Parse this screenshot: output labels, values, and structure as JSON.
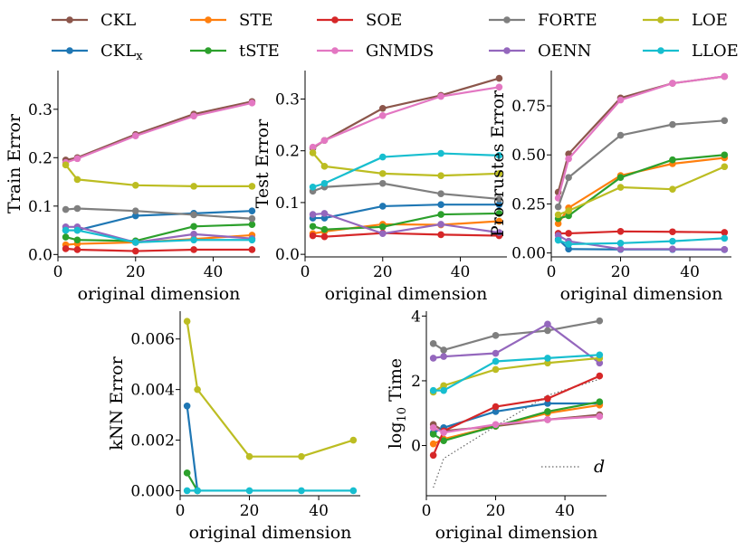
{
  "legend": [
    {
      "name": "CKL",
      "color": "#8c564b"
    },
    {
      "name": "STE",
      "color": "#ff7f0e"
    },
    {
      "name": "SOE",
      "color": "#d62728"
    },
    {
      "name": "FORTE",
      "color": "#7f7f7f"
    },
    {
      "name": "LOE",
      "color": "#bcbd22"
    },
    {
      "name": "CKL_x",
      "color": "#1f77b4"
    },
    {
      "name": "tSTE",
      "color": "#2ca02c"
    },
    {
      "name": "GNMDS",
      "color": "#e377c2"
    },
    {
      "name": "OENN",
      "color": "#9467bd"
    },
    {
      "name": "LLOE",
      "color": "#17becf"
    }
  ],
  "chart_data": [
    {
      "type": "line",
      "xlabel": "original dimension",
      "ylabel": "Train Error",
      "xticks": [
        "0",
        "20",
        "40"
      ],
      "yticks": [
        "0.0",
        "0.1",
        "0.2",
        "0.3"
      ],
      "xlim": [
        0,
        52
      ],
      "ylim": [
        -0.005,
        0.38
      ],
      "series": [
        {
          "name": "CKL",
          "color": "#8c564b",
          "x": [
            2,
            5,
            20,
            35,
            50
          ],
          "y": [
            0.195,
            0.2,
            0.248,
            0.29,
            0.316
          ]
        },
        {
          "name": "CKL_x",
          "color": "#1f77b4",
          "x": [
            2,
            5,
            20,
            35,
            50
          ],
          "y": [
            0.05,
            0.05,
            0.08,
            0.085,
            0.09
          ]
        },
        {
          "name": "STE",
          "color": "#ff7f0e",
          "x": [
            2,
            5,
            20,
            35,
            50
          ],
          "y": [
            0.02,
            0.022,
            0.025,
            0.032,
            0.04
          ]
        },
        {
          "name": "tSTE",
          "color": "#2ca02c",
          "x": [
            2,
            5,
            20,
            35,
            50
          ],
          "y": [
            0.036,
            0.03,
            0.028,
            0.058,
            0.062
          ]
        },
        {
          "name": "SOE",
          "color": "#d62728",
          "x": [
            2,
            5,
            20,
            35,
            50
          ],
          "y": [
            0.012,
            0.01,
            0.007,
            0.01,
            0.01
          ]
        },
        {
          "name": "GNMDS",
          "color": "#e377c2",
          "x": [
            2,
            5,
            20,
            35,
            50
          ],
          "y": [
            0.19,
            0.198,
            0.245,
            0.286,
            0.313
          ]
        },
        {
          "name": "FORTE",
          "color": "#7f7f7f",
          "x": [
            2,
            5,
            20,
            35,
            50
          ],
          "y": [
            0.093,
            0.095,
            0.09,
            0.082,
            0.074
          ]
        },
        {
          "name": "OENN",
          "color": "#9467bd",
          "x": [
            2,
            5,
            20,
            35,
            50
          ],
          "y": [
            0.057,
            0.057,
            0.025,
            0.042,
            0.033
          ]
        },
        {
          "name": "LOE",
          "color": "#bcbd22",
          "x": [
            2,
            5,
            20,
            35,
            50
          ],
          "y": [
            0.185,
            0.155,
            0.143,
            0.141,
            0.141
          ]
        },
        {
          "name": "LLOE",
          "color": "#17becf",
          "x": [
            2,
            5,
            20,
            35,
            50
          ],
          "y": [
            0.05,
            0.05,
            0.025,
            0.03,
            0.03
          ]
        }
      ]
    },
    {
      "type": "line",
      "xlabel": "original dimension",
      "ylabel": "Test Error",
      "xticks": [
        "0",
        "20",
        "40"
      ],
      "yticks": [
        "0.0",
        "0.1",
        "0.2",
        "0.3"
      ],
      "xlim": [
        0,
        52
      ],
      "ylim": [
        -0.005,
        0.355
      ],
      "series": [
        {
          "name": "CKL",
          "color": "#8c564b",
          "x": [
            2,
            5,
            20,
            35,
            50
          ],
          "y": [
            0.205,
            0.22,
            0.282,
            0.307,
            0.34
          ]
        },
        {
          "name": "CKL_x",
          "color": "#1f77b4",
          "x": [
            2,
            5,
            20,
            35,
            50
          ],
          "y": [
            0.07,
            0.07,
            0.093,
            0.096,
            0.096
          ]
        },
        {
          "name": "STE",
          "color": "#ff7f0e",
          "x": [
            2,
            5,
            20,
            35,
            50
          ],
          "y": [
            0.04,
            0.044,
            0.058,
            0.057,
            0.064
          ]
        },
        {
          "name": "tSTE",
          "color": "#2ca02c",
          "x": [
            2,
            5,
            20,
            35,
            50
          ],
          "y": [
            0.054,
            0.048,
            0.053,
            0.077,
            0.079
          ]
        },
        {
          "name": "SOE",
          "color": "#d62728",
          "x": [
            2,
            5,
            20,
            35,
            50
          ],
          "y": [
            0.036,
            0.034,
            0.041,
            0.038,
            0.036
          ]
        },
        {
          "name": "GNMDS",
          "color": "#e377c2",
          "x": [
            2,
            5,
            20,
            35,
            50
          ],
          "y": [
            0.207,
            0.22,
            0.268,
            0.305,
            0.323
          ]
        },
        {
          "name": "FORTE",
          "color": "#7f7f7f",
          "x": [
            2,
            5,
            20,
            35,
            50
          ],
          "y": [
            0.122,
            0.13,
            0.137,
            0.117,
            0.107
          ]
        },
        {
          "name": "OENN",
          "color": "#9467bd",
          "x": [
            2,
            5,
            20,
            35,
            50
          ],
          "y": [
            0.077,
            0.079,
            0.04,
            0.058,
            0.042
          ]
        },
        {
          "name": "LOE",
          "color": "#bcbd22",
          "x": [
            2,
            5,
            20,
            35,
            50
          ],
          "y": [
            0.196,
            0.17,
            0.156,
            0.152,
            0.156
          ]
        },
        {
          "name": "LLOE",
          "color": "#17becf",
          "x": [
            2,
            5,
            20,
            35,
            50
          ],
          "y": [
            0.13,
            0.137,
            0.188,
            0.195,
            0.191
          ]
        }
      ]
    },
    {
      "type": "line",
      "xlabel": "original dimension",
      "ylabel": "Procrustes Error",
      "xticks": [
        "0",
        "20",
        "40"
      ],
      "yticks": [
        "0.00",
        "0.25",
        "0.50",
        "0.75"
      ],
      "xlim": [
        0,
        52
      ],
      "ylim": [
        -0.02,
        0.93
      ],
      "series": [
        {
          "name": "CKL",
          "color": "#8c564b",
          "x": [
            2,
            5,
            20,
            35,
            50
          ],
          "y": [
            0.31,
            0.505,
            0.79,
            0.865,
            0.9
          ]
        },
        {
          "name": "CKL_x",
          "color": "#1f77b4",
          "x": [
            2,
            5,
            20,
            35,
            50
          ],
          "y": [
            0.07,
            0.02,
            0.018,
            0.018,
            0.017
          ]
        },
        {
          "name": "STE",
          "color": "#ff7f0e",
          "x": [
            2,
            5,
            20,
            35,
            50
          ],
          "y": [
            0.15,
            0.23,
            0.395,
            0.455,
            0.485
          ]
        },
        {
          "name": "tSTE",
          "color": "#2ca02c",
          "x": [
            2,
            5,
            20,
            35,
            50
          ],
          "y": [
            0.175,
            0.19,
            0.385,
            0.475,
            0.5
          ]
        },
        {
          "name": "SOE",
          "color": "#d62728",
          "x": [
            2,
            5,
            20,
            35,
            50
          ],
          "y": [
            0.1,
            0.1,
            0.11,
            0.108,
            0.105
          ]
        },
        {
          "name": "GNMDS",
          "color": "#e377c2",
          "x": [
            2,
            5,
            20,
            35,
            50
          ],
          "y": [
            0.28,
            0.48,
            0.78,
            0.865,
            0.9
          ]
        },
        {
          "name": "FORTE",
          "color": "#7f7f7f",
          "x": [
            2,
            5,
            20,
            35,
            50
          ],
          "y": [
            0.235,
            0.385,
            0.6,
            0.655,
            0.675
          ]
        },
        {
          "name": "OENN",
          "color": "#9467bd",
          "x": [
            2,
            5,
            20,
            35,
            50
          ],
          "y": [
            0.09,
            0.06,
            0.02,
            0.02,
            0.018
          ]
        },
        {
          "name": "LOE",
          "color": "#bcbd22",
          "x": [
            2,
            5,
            20,
            35,
            50
          ],
          "y": [
            0.195,
            0.215,
            0.335,
            0.325,
            0.44
          ]
        },
        {
          "name": "LLOE",
          "color": "#17becf",
          "x": [
            2,
            5,
            20,
            35,
            50
          ],
          "y": [
            0.065,
            0.045,
            0.05,
            0.06,
            0.075
          ]
        }
      ]
    },
    {
      "type": "line",
      "xlabel": "original dimension",
      "ylabel": "kNN Error",
      "xticks": [
        "0",
        "20",
        "40"
      ],
      "yticks": [
        "0.000",
        "0.002",
        "0.004",
        "0.006"
      ],
      "xlim": [
        0,
        52
      ],
      "ylim": [
        -0.0002,
        0.0071
      ],
      "series": [
        {
          "name": "CKL_x",
          "color": "#1f77b4",
          "x": [
            2,
            5
          ],
          "y": [
            0.00335,
            0.0
          ]
        },
        {
          "name": "tSTE",
          "color": "#2ca02c",
          "x": [
            2,
            5
          ],
          "y": [
            0.0007,
            0.0
          ]
        },
        {
          "name": "LOE",
          "color": "#bcbd22",
          "x": [
            2,
            5,
            20,
            35,
            50
          ],
          "y": [
            0.0067,
            0.004,
            0.00135,
            0.00135,
            0.002
          ]
        },
        {
          "name": "LLOE",
          "color": "#17becf",
          "x": [
            2,
            5,
            20,
            35,
            50
          ],
          "y": [
            0.0,
            0.0,
            0.0,
            0.0,
            0.0
          ]
        }
      ]
    },
    {
      "type": "line",
      "xlabel": "original dimension",
      "ylabel": "log10 Time",
      "xticks": [
        "0",
        "20",
        "40"
      ],
      "yticks": [
        "0",
        "2",
        "4"
      ],
      "xlim": [
        0,
        52
      ],
      "ylim": [
        -1.55,
        4.15
      ],
      "reference_label": "d",
      "reference": {
        "x": [
          2,
          5,
          20,
          35,
          50
        ],
        "y": [
          -1.3,
          -0.4,
          0.6,
          1.55,
          2.05
        ]
      },
      "series": [
        {
          "name": "CKL",
          "color": "#8c564b",
          "x": [
            2,
            5,
            20,
            35,
            50
          ],
          "y": [
            0.65,
            0.45,
            0.6,
            0.8,
            0.95
          ]
        },
        {
          "name": "CKL_x",
          "color": "#1f77b4",
          "x": [
            2,
            5,
            20,
            35,
            50
          ],
          "y": [
            0.4,
            0.55,
            1.05,
            1.3,
            1.3
          ]
        },
        {
          "name": "STE",
          "color": "#ff7f0e",
          "x": [
            2,
            5,
            20,
            35,
            50
          ],
          "y": [
            0.05,
            0.2,
            0.6,
            1.0,
            1.25
          ]
        },
        {
          "name": "tSTE",
          "color": "#2ca02c",
          "x": [
            2,
            5,
            20,
            35,
            50
          ],
          "y": [
            0.35,
            0.15,
            0.6,
            1.05,
            1.35
          ]
        },
        {
          "name": "SOE",
          "color": "#d62728",
          "x": [
            2,
            5,
            20,
            35,
            50
          ],
          "y": [
            -0.3,
            0.45,
            1.2,
            1.45,
            2.15
          ]
        },
        {
          "name": "GNMDS",
          "color": "#e377c2",
          "x": [
            2,
            5,
            20,
            35,
            50
          ],
          "y": [
            0.55,
            0.4,
            0.65,
            0.8,
            0.9
          ]
        },
        {
          "name": "FORTE",
          "color": "#7f7f7f",
          "x": [
            2,
            5,
            20,
            35,
            50
          ],
          "y": [
            3.15,
            2.95,
            3.4,
            3.55,
            3.85
          ]
        },
        {
          "name": "OENN",
          "color": "#9467bd",
          "x": [
            2,
            5,
            20,
            35,
            50
          ],
          "y": [
            2.7,
            2.75,
            2.85,
            3.75,
            2.55
          ]
        },
        {
          "name": "LOE",
          "color": "#bcbd22",
          "x": [
            2,
            5,
            20,
            35,
            50
          ],
          "y": [
            1.65,
            1.85,
            2.35,
            2.55,
            2.7
          ]
        },
        {
          "name": "LLOE",
          "color": "#17becf",
          "x": [
            2,
            5,
            20,
            35,
            50
          ],
          "y": [
            1.7,
            1.7,
            2.6,
            2.7,
            2.8
          ]
        }
      ]
    }
  ]
}
